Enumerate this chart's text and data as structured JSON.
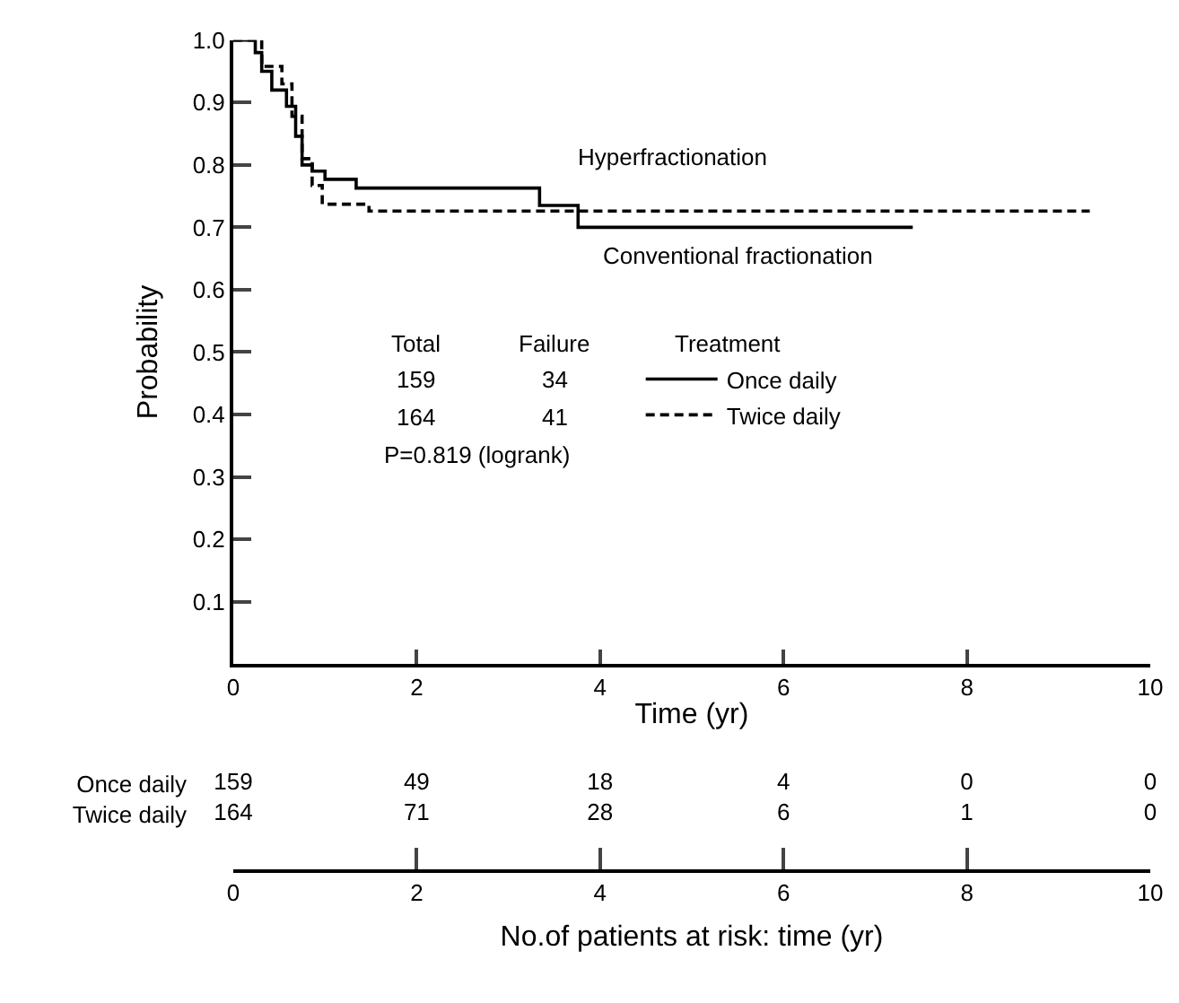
{
  "chart_data": [
    {
      "type": "step",
      "xlabel": "Time (yr)",
      "ylabel": "Probability",
      "xlim": [
        0,
        10
      ],
      "ylim": [
        0,
        1.0
      ],
      "xticks": [
        0,
        2,
        4,
        6,
        8,
        10
      ],
      "yticks": [
        0.1,
        0.2,
        0.3,
        0.4,
        0.5,
        0.6,
        0.7,
        0.8,
        0.9,
        {
          "value": 1.0,
          "label": "1.0"
        }
      ],
      "marker": "none",
      "legend": "center",
      "series": [
        {
          "name": "Once daily",
          "color": "#000000",
          "line_style": "solid",
          "x": [
            0,
            0.16,
            0.24,
            0.31,
            0.42,
            0.58,
            0.68,
            0.75,
            0.86,
            1.0,
            1.34,
            3.34,
            3.76,
            7.41
          ],
          "values": [
            1.0,
            1.0,
            0.98,
            0.95,
            0.92,
            0.894,
            0.846,
            0.8,
            0.79,
            0.777,
            0.763,
            0.735,
            0.7,
            0.7
          ]
        },
        {
          "name": "Twice daily",
          "color": "#000000",
          "line_style": "dashed",
          "x": [
            0,
            0.18,
            0.31,
            0.53,
            0.64,
            0.75,
            0.86,
            0.97,
            1.48,
            9.34
          ],
          "values": [
            1.0,
            1.0,
            0.958,
            0.93,
            0.878,
            0.81,
            0.767,
            0.737,
            0.726,
            0.726
          ]
        }
      ],
      "annotations": [
        "Hyperfractionation",
        "Conventional fractionation",
        "Total",
        "Failure",
        "Treatment",
        "159",
        "34",
        "164",
        "41",
        "P=0.819 (logrank)"
      ]
    },
    {
      "type": "heatmap",
      "xlabel": "No.of patients at risk: time (yr)",
      "categories": [
        "0",
        "2",
        "4",
        "6",
        "8",
        "10"
      ],
      "y_categories": [
        "Once daily",
        "Twice daily"
      ],
      "data_labels": true,
      "cells": [
        [
          159,
          49,
          18,
          4,
          0,
          0
        ],
        [
          164,
          71,
          28,
          6,
          1,
          0
        ]
      ]
    }
  ]
}
